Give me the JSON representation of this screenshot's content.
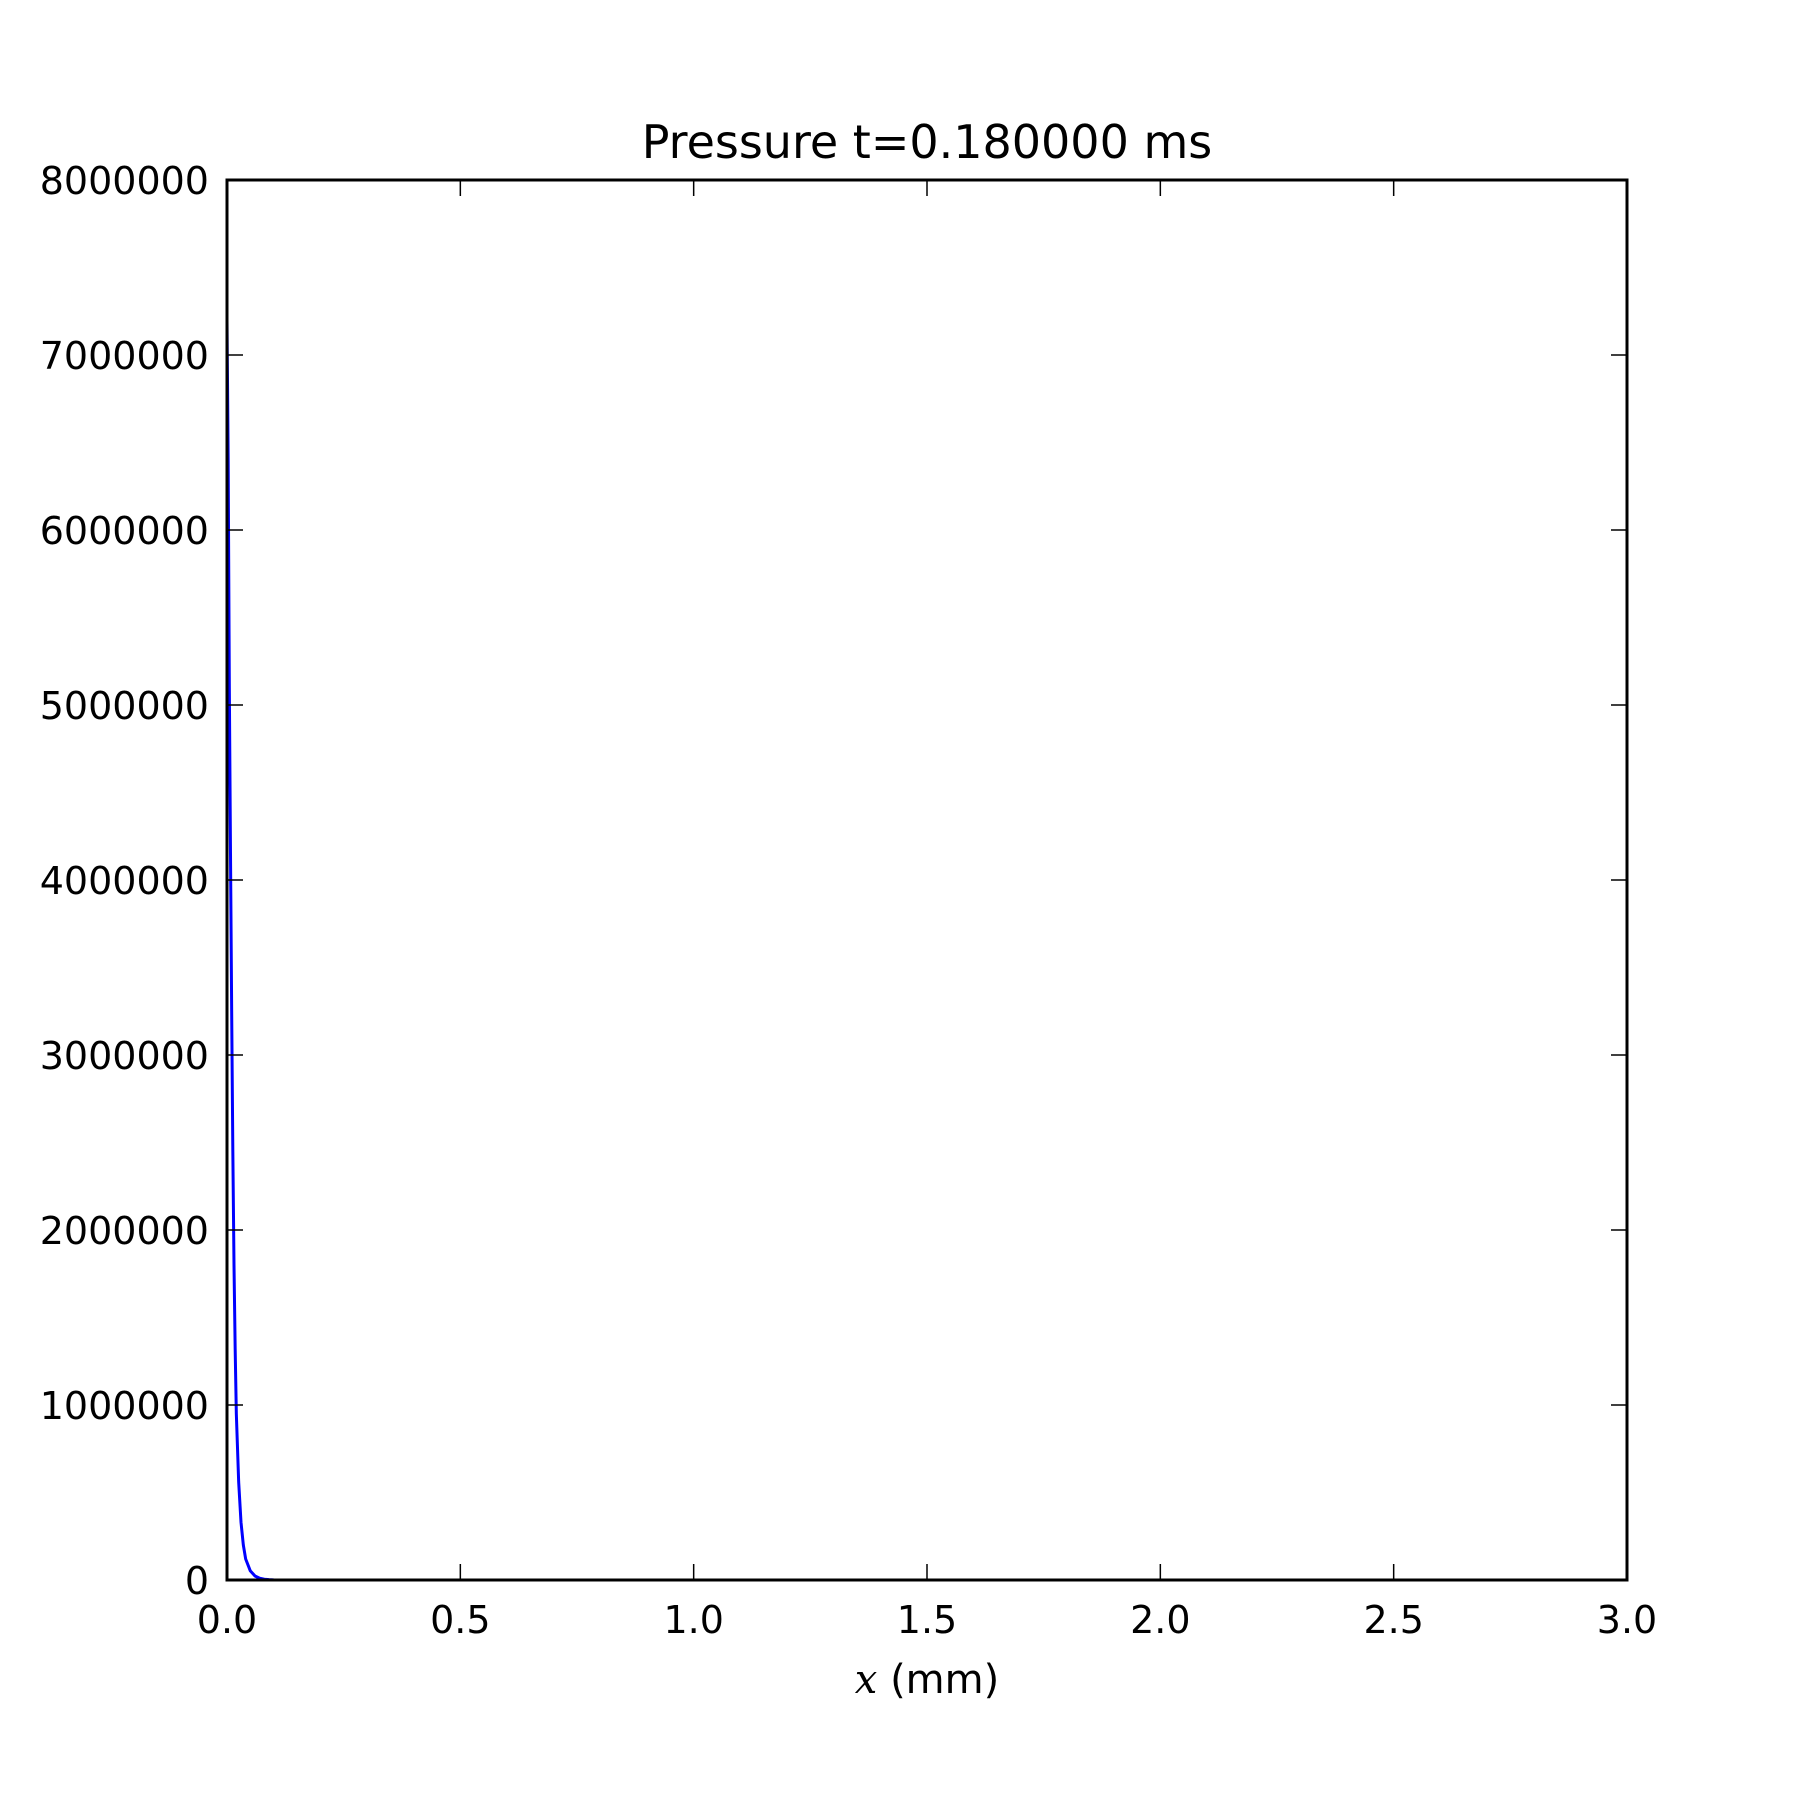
{
  "chart_data": {
    "type": "line",
    "title": "Pressure t=0.180000 ms",
    "xlabel_var": "x",
    "xlabel_unit": "(mm)",
    "ylabel": "",
    "xlim": [
      0.0,
      3.0
    ],
    "ylim": [
      0,
      8000000
    ],
    "xticks": [
      0.0,
      0.5,
      1.0,
      1.5,
      2.0,
      2.5,
      3.0
    ],
    "xtick_labels": [
      "0.0",
      "0.5",
      "1.0",
      "1.5",
      "2.0",
      "2.5",
      "3.0"
    ],
    "yticks": [
      0,
      1000000,
      2000000,
      3000000,
      4000000,
      5000000,
      6000000,
      7000000,
      8000000
    ],
    "ytick_labels": [
      "0",
      "1000000",
      "2000000",
      "3000000",
      "4000000",
      "5000000",
      "6000000",
      "7000000",
      "8000000"
    ],
    "grid": false,
    "legend": "none",
    "series": [
      {
        "color": "#0000ff",
        "x": [
          0.0,
          0.0025,
          0.005,
          0.0075,
          0.01,
          0.0125,
          0.015,
          0.0175,
          0.02,
          0.025,
          0.03,
          0.035,
          0.04,
          0.05,
          0.06,
          0.07,
          0.08,
          0.09,
          0.1,
          0.12,
          0.15,
          0.2,
          0.3,
          0.5,
          1.0,
          1.5,
          2.0,
          2.5,
          3.0
        ],
        "y": [
          7200000,
          6400000,
          5100000,
          4150000,
          3250000,
          2450000,
          1800000,
          1320000,
          950000,
          560000,
          330000,
          200000,
          120000,
          52000,
          23000,
          10000,
          4500,
          2000,
          900,
          200,
          30,
          0,
          0,
          0,
          0,
          0,
          0,
          0,
          0
        ]
      }
    ]
  }
}
